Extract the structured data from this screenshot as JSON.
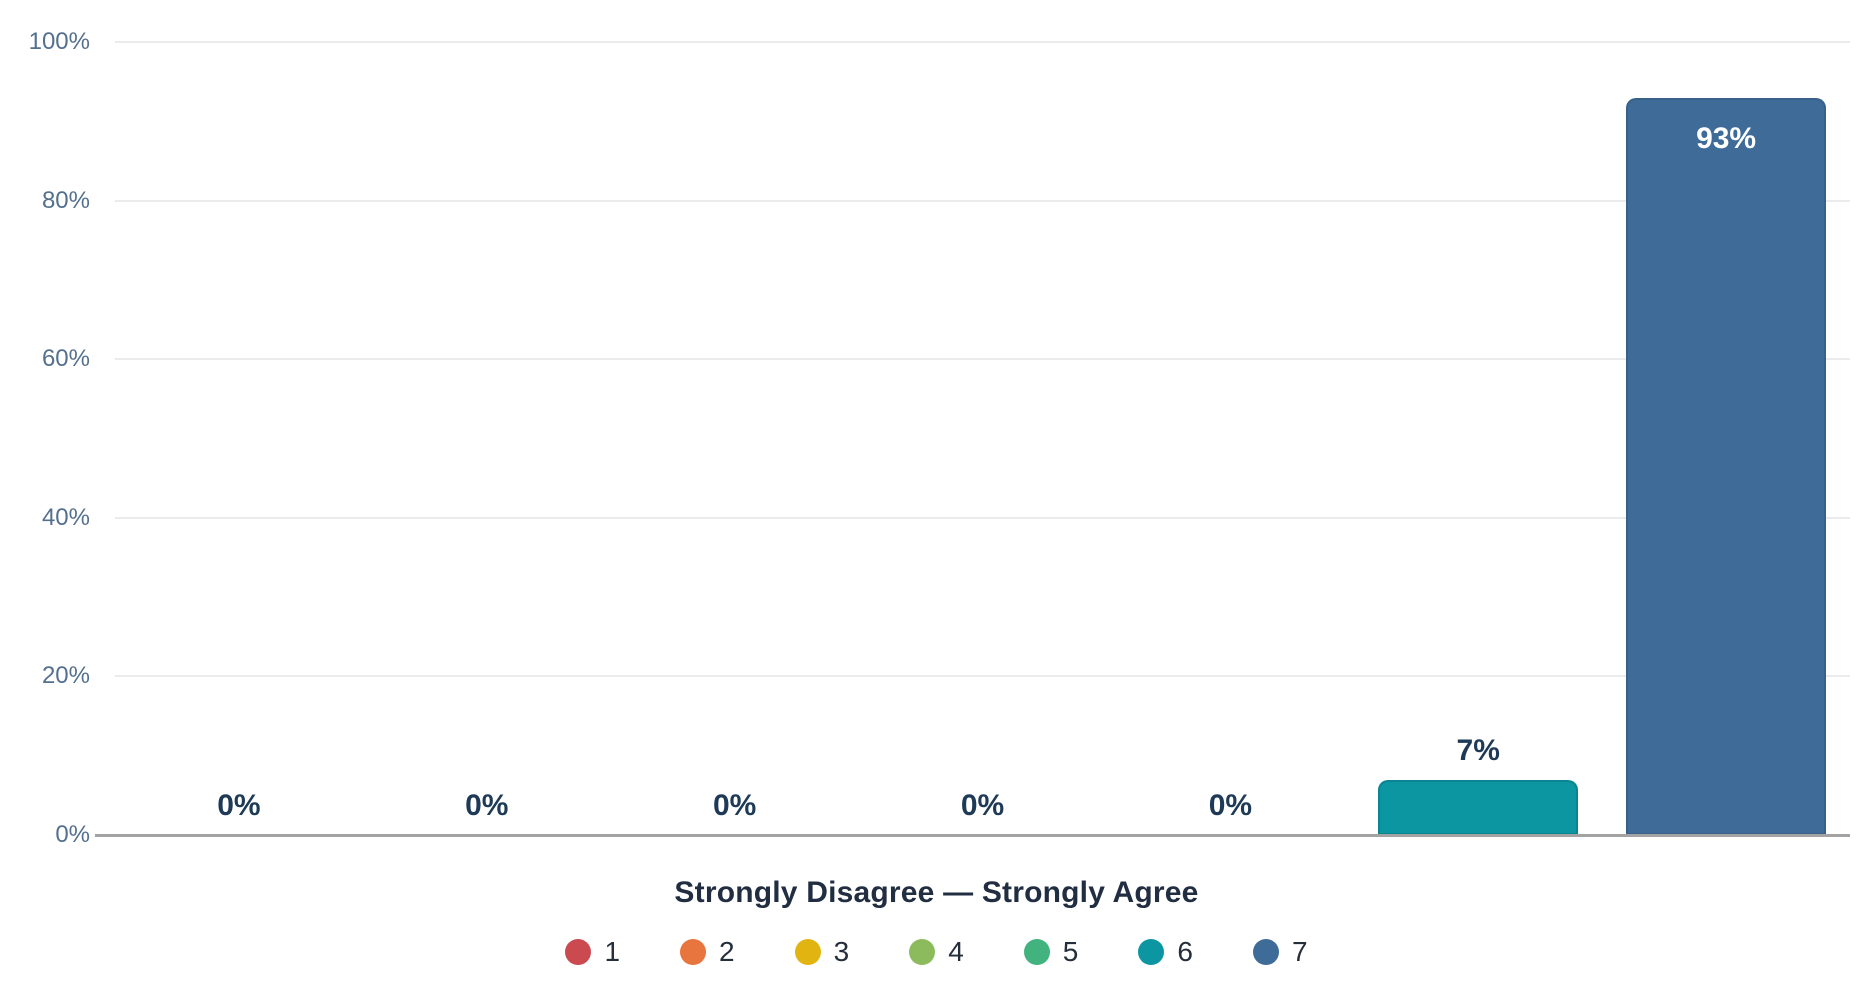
{
  "chart_data": {
    "type": "bar",
    "title": "",
    "xlabel": "Strongly Disagree — Strongly Agree",
    "ylabel": "",
    "ylim": [
      0,
      100
    ],
    "grid": true,
    "legend_position": "bottom",
    "categories": [
      "1",
      "2",
      "3",
      "4",
      "5",
      "6",
      "7"
    ],
    "values": [
      0,
      0,
      0,
      0,
      0,
      7,
      93
    ],
    "value_labels": [
      "0%",
      "0%",
      "0%",
      "0%",
      "0%",
      "7%",
      "93%"
    ],
    "bar_colors": [
      "#cb4a50",
      "#e8743e",
      "#e2b411",
      "#8cbb5e",
      "#42b27e",
      "#0b96a2",
      "#3f6b99"
    ],
    "yticks": [
      {
        "label": "0%",
        "value": 0
      },
      {
        "label": "20%",
        "value": 20
      },
      {
        "label": "40%",
        "value": 40
      },
      {
        "label": "60%",
        "value": 60
      },
      {
        "label": "80%",
        "value": 80
      },
      {
        "label": "100%",
        "value": 100
      }
    ],
    "legend": [
      {
        "label": "1",
        "color": "#cb4a50"
      },
      {
        "label": "2",
        "color": "#e8743e"
      },
      {
        "label": "3",
        "color": "#e2b411"
      },
      {
        "label": "4",
        "color": "#8cbb5e"
      },
      {
        "label": "5",
        "color": "#42b27e"
      },
      {
        "label": "6",
        "color": "#0b96a2"
      },
      {
        "label": "7",
        "color": "#3f6b99"
      }
    ]
  },
  "style_colors": {
    "background": "#ffffff",
    "gridline": "#ebebeb",
    "axis_line": "#a3a3a3",
    "tick_label": "#54708e",
    "value_label": "#1e3a57",
    "value_label_inside": "#ffffff",
    "axis_title": "#212e42",
    "legend_label": "#242f3b"
  }
}
